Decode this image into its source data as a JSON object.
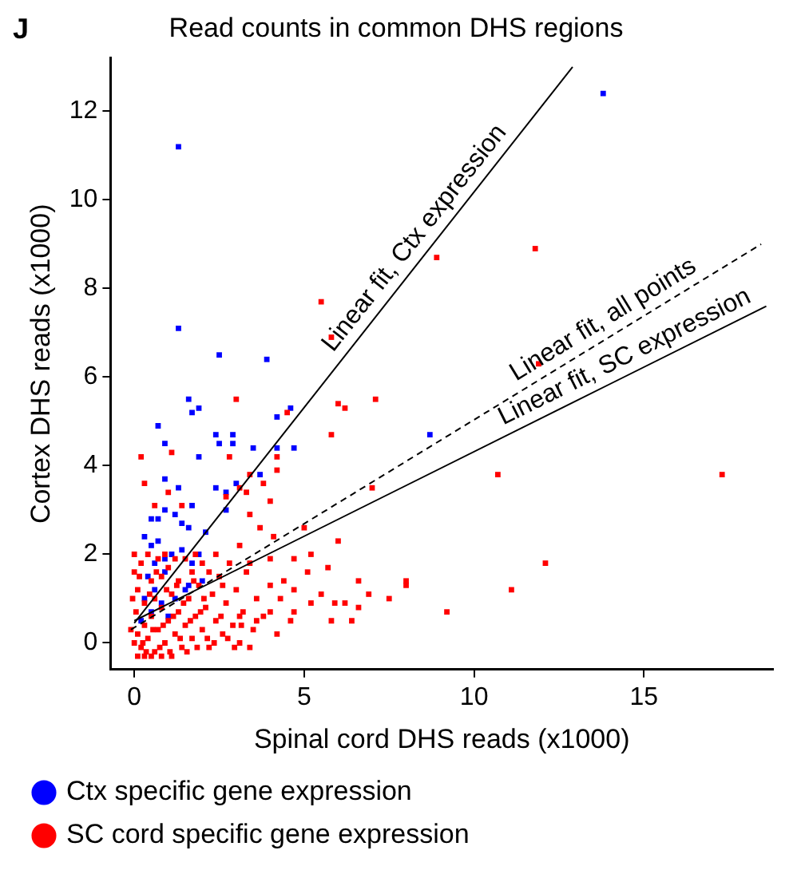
{
  "chart_data": {
    "type": "scatter",
    "title": "Read counts in common DHS regions",
    "xlabel": "Spinal cord DHS reads (x1000)",
    "ylabel": "Cortex DHS reads (x1000)",
    "xlim": [
      -0.7,
      18.8
    ],
    "ylim": [
      -0.6,
      13.2
    ],
    "xticks": [
      0,
      5,
      10,
      15
    ],
    "yticks": [
      0,
      2,
      4,
      6,
      8,
      10,
      12
    ],
    "grid": false,
    "legend": "bottom",
    "marker": "square",
    "annotations": [
      "J",
      {
        "text": "Linear fit, Ctx expression",
        "x": 6.1,
        "y": 6.4
      },
      {
        "text": "Linear fit, all points",
        "x": 11.4,
        "y": 5.7
      },
      {
        "text": "Linear fit, SC expression",
        "x": 11.0,
        "y": 4.7
      }
    ],
    "series": [
      {
        "name": "SC cord specific gene expression",
        "color": "#ff0000",
        "x": [
          8.9,
          11.8,
          11.9,
          7.1,
          6.0,
          6.2,
          5.8,
          7.0,
          10.7,
          17.3,
          6.0,
          12.1,
          6.6,
          8.0,
          11.1,
          6.9,
          7.5,
          5.9,
          6.2,
          6.6,
          9.2,
          5.8,
          6.4,
          5.5,
          5.8,
          3.0,
          4.5,
          0.2,
          1.1,
          2.8,
          4.2,
          0.3,
          1.0,
          0.6,
          1.4,
          2.7,
          3.1,
          3.4,
          3.3,
          3.8,
          4.0,
          3.4,
          4.2,
          5.0,
          4.1,
          3.7,
          3.1,
          5.2,
          4.7,
          5.7,
          5.1,
          4.0,
          3.4,
          4.4,
          4.7,
          8.0,
          5.5,
          4.3,
          5.2,
          4.7,
          4.0,
          3.6,
          4.6,
          3.1,
          0,
          0.1,
          0.2,
          0.3,
          0.4,
          0.5,
          0.6,
          0.7,
          0.8,
          0.9,
          1.0,
          1.1,
          1.2,
          1.3,
          1.4,
          1.5,
          1.6,
          1.7,
          1.8,
          1.9,
          2.0,
          2.1,
          2.2,
          2.3,
          2.4,
          2.5,
          2.6,
          2.7,
          2.8,
          2.9,
          3.0,
          3.1,
          3.2,
          3.3,
          3.5,
          3.6,
          3.8,
          4.0,
          4.2,
          0.1,
          0.2,
          0.3,
          0.4,
          0.5,
          0.6,
          0.7,
          0.8,
          0.9,
          1.0,
          1.2,
          1.3,
          1.5,
          1.7,
          1.8,
          2.0,
          2.2,
          2.4,
          2.6,
          0.05,
          0.15,
          0.25,
          0.35,
          0.45,
          0.55,
          0.65,
          0.75,
          0.85,
          0.95,
          1.05,
          1.15,
          1.25,
          1.35,
          1.45,
          1.55,
          1.65,
          1.75,
          1.85,
          1.95,
          2.05,
          2.15,
          2.35,
          2.55,
          2.75,
          2.95,
          3.15,
          3.4,
          -0.1,
          -0.05,
          0.0,
          0.0,
          0.1,
          0.3,
          0.5,
          0.8,
          1.1
        ],
        "values": [
          8.7,
          8.9,
          6.3,
          5.5,
          5.4,
          5.3,
          4.7,
          3.5,
          3.8,
          3.8,
          2.3,
          1.8,
          1.4,
          1.4,
          1.2,
          1.1,
          1.0,
          0.9,
          0.9,
          0.8,
          0.7,
          0.5,
          0.5,
          7.7,
          6.9,
          5.5,
          5.2,
          4.2,
          4.3,
          4.2,
          4.2,
          3.6,
          3.4,
          3.1,
          3.1,
          3.3,
          3.5,
          3.8,
          3.4,
          3.6,
          3.2,
          2.9,
          3.9,
          2.6,
          2.4,
          2.6,
          2.2,
          2.0,
          1.9,
          1.7,
          1.6,
          1.9,
          1.8,
          1.4,
          1.2,
          1.3,
          1.1,
          1.0,
          0.9,
          0.7,
          0.7,
          0.5,
          0.5,
          0.6,
          0,
          0.2,
          -0.1,
          0.4,
          0.1,
          0.6,
          -0.2,
          0.3,
          0.8,
          0.0,
          0.5,
          1.1,
          0.2,
          0.7,
          -0.1,
          0.4,
          1.0,
          0.1,
          0.6,
          1.3,
          0.3,
          0.8,
          -0.1,
          1.1,
          0.5,
          1.5,
          0.2,
          0.9,
          1.8,
          0.4,
          1.2,
          0.0,
          0.7,
          1.6,
          0.3,
          1.0,
          0.6,
          1.3,
          0.2,
          1.2,
          1.8,
          0.9,
          2.0,
          1.4,
          1.0,
          1.9,
          1.5,
          2.0,
          1.7,
          1.9,
          1.4,
          1.9,
          1.6,
          2.0,
          1.8,
          1.6,
          2.0,
          1.3,
          0.7,
          1.5,
          0.0,
          -0.2,
          1.1,
          0.3,
          1.6,
          -0.1,
          0.4,
          1.2,
          -0.2,
          0.6,
          1.3,
          0.1,
          0.9,
          -0.2,
          0.5,
          1.4,
          -0.1,
          0.7,
          1.0,
          0.1,
          0.0,
          0.6,
          0.1,
          -0.1,
          0.4,
          -0.1,
          0.3,
          1.0,
          1.6,
          2.0,
          -0.3,
          -0.3,
          -0.3,
          -0.3,
          -0.3
        ]
      },
      {
        "name": "Ctx specific gene expression",
        "color": "#0000ff",
        "x": [
          13.8,
          8.7,
          1.3,
          1.3,
          2.5,
          3.9,
          1.6,
          1.7,
          1.9,
          0.7,
          4.2,
          4.6,
          2.4,
          2.9,
          0.9,
          2.5,
          2.9,
          1.9,
          3.5,
          4.2,
          4.7,
          0.9,
          1.3,
          2.4,
          2.7,
          3.0,
          3.7,
          0.9,
          1.7,
          0.5,
          0.7,
          1.2,
          2.7,
          1.6,
          2.1,
          0.5,
          1.1,
          1.4,
          1.7,
          0.4,
          0.9,
          1.6,
          0.6,
          0.9,
          0.7,
          0.3,
          0.8,
          1.2,
          0.5,
          1.5,
          2.0,
          0.2,
          1.0,
          0.6,
          1.9,
          0.3,
          1.4
        ],
        "values": [
          12.4,
          4.7,
          11.2,
          7.1,
          6.5,
          6.4,
          5.5,
          5.2,
          5.3,
          4.9,
          5.1,
          5.3,
          4.7,
          4.7,
          4.5,
          4.5,
          4.5,
          4.2,
          4.4,
          4.4,
          4.4,
          3.7,
          3.5,
          3.5,
          3.4,
          3.6,
          3.8,
          3.0,
          3.1,
          2.8,
          2.8,
          2.9,
          3.0,
          2.6,
          2.5,
          2.2,
          2.0,
          2.1,
          1.8,
          1.5,
          1.6,
          1.3,
          1.2,
          1.9,
          2.3,
          1.0,
          0.9,
          1.0,
          0.7,
          1.2,
          1.4,
          0.5,
          0.6,
          1.8,
          2.0,
          2.4,
          2.7
        ]
      },
      {
        "type": "line",
        "color": "#000000",
        "line_style": "solid",
        "marker": "none",
        "x": [
          0,
          12.9
        ],
        "values": [
          0.45,
          13.0
        ]
      },
      {
        "type": "line",
        "color": "#000000",
        "line_style": "dashed",
        "marker": "none",
        "x": [
          -0.1,
          18.45
        ],
        "values": [
          0.3,
          9.0
        ]
      },
      {
        "type": "line",
        "color": "#000000",
        "line_style": "solid",
        "marker": "none",
        "x": [
          0,
          18.6
        ],
        "values": [
          0.5,
          7.6
        ]
      }
    ]
  }
}
